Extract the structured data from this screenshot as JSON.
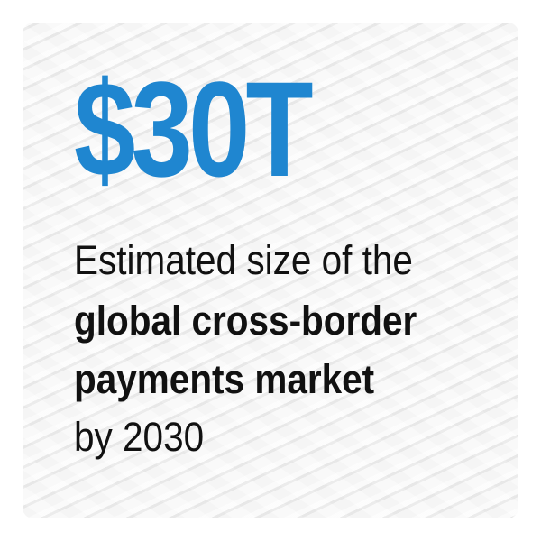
{
  "headline": "$30T",
  "lines": [
    "Estimated size of the",
    "global cross-border",
    "payments market",
    "by 2030"
  ],
  "colors": {
    "accent": "#1f86d0",
    "text": "#111111"
  }
}
